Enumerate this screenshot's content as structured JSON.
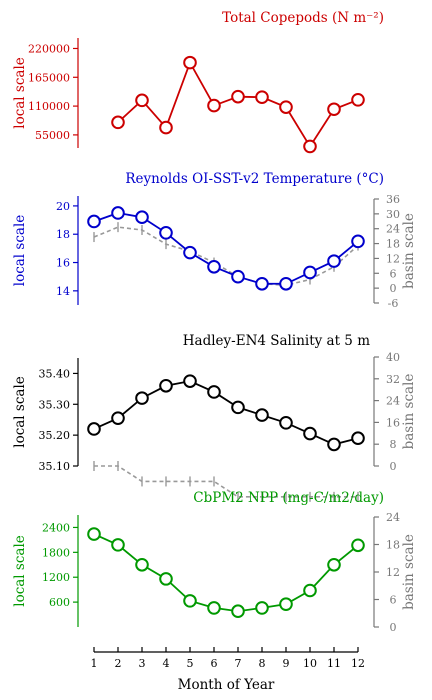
{
  "chart_data": [
    {
      "type": "line",
      "title": "Total Copepods (N m⁻²)",
      "color": "#cc0000",
      "ylabel_left": "local scale",
      "ylim_left": [
        30000,
        240000
      ],
      "yticks_left": [
        55000,
        110000,
        165000,
        220000
      ],
      "yticklabels_left": [
        "55000",
        "110000",
        "165000",
        "220000"
      ],
      "x": [
        2,
        3,
        4,
        5,
        6,
        7,
        8,
        9,
        10,
        11,
        12
      ],
      "series": [
        {
          "values": [
            79000,
            121000,
            69000,
            193000,
            111000,
            128000,
            127000,
            108000,
            33000,
            104000,
            122000
          ]
        }
      ]
    },
    {
      "type": "line",
      "title": "Reynolds OI-SST-v2 Temperature (°C)",
      "color": "#0000cc",
      "basis_color": "#999999",
      "ylabel_left": "local scale",
      "ylabel_right": "basin scale",
      "ylim_left": [
        13.0,
        20.7
      ],
      "yticks_left": [
        14,
        16,
        18,
        20
      ],
      "yticklabels_left": [
        "14",
        "16",
        "18",
        "20"
      ],
      "ylim_right": [
        -6,
        36
      ],
      "yticks_right": [
        -6,
        0,
        6,
        12,
        18,
        24,
        30,
        36
      ],
      "yticklabels_right": [
        "-6",
        "0",
        "6",
        "12",
        "18",
        "24",
        "30",
        "36"
      ],
      "x": [
        1,
        2,
        3,
        4,
        5,
        6,
        7,
        8,
        9,
        10,
        11,
        12
      ],
      "series": [
        {
          "axis": "left",
          "values": [
            18.9,
            19.5,
            19.2,
            18.1,
            16.7,
            15.7,
            15.0,
            14.5,
            14.5,
            15.3,
            16.1,
            17.5
          ]
        },
        {
          "axis": "right",
          "values": [
            17.8,
            18.5,
            18.3,
            17.3,
            16.8,
            16.0,
            15.0,
            14.5,
            14.4,
            14.8,
            15.7,
            17.2
          ],
          "style": "dashed"
        }
      ]
    },
    {
      "type": "line",
      "title": "Hadley-EN4 Salinity at 5 m",
      "color": "#000000",
      "basis_color": "#999999",
      "ylabel_left": "local scale",
      "ylabel_right": "basin scale",
      "ylim_left": [
        35.1,
        35.45
      ],
      "yticks_left": [
        35.1,
        35.2,
        35.3,
        35.4
      ],
      "yticklabels_left": [
        "35.10",
        "35.20",
        "35.30",
        "35.40"
      ],
      "ylim_right": [
        0,
        40
      ],
      "yticks_right": [
        0,
        8,
        16,
        24,
        32,
        40
      ],
      "yticklabels_right": [
        "0",
        "8",
        "16",
        "24",
        "32",
        "40"
      ],
      "x": [
        1,
        2,
        3,
        4,
        5,
        6,
        7,
        8,
        9,
        10,
        11,
        12
      ],
      "series": [
        {
          "axis": "left",
          "values": [
            35.22,
            35.255,
            35.32,
            35.36,
            35.375,
            35.34,
            35.29,
            35.265,
            35.24,
            35.205,
            35.17,
            35.19
          ]
        },
        {
          "axis": "right",
          "values": [
            35.1,
            35.1,
            35.05,
            35.05,
            35.05,
            35.05,
            35.0,
            35.0,
            35.0,
            35.0,
            35.0,
            35.0
          ],
          "style": "dashed"
        }
      ]
    },
    {
      "type": "line",
      "title": "CbPM2 NPP (mg-C/m2/day)",
      "color": "#009900",
      "ylabel_left": "local scale",
      "ylabel_right": "basin scale",
      "ylim_left": [
        0,
        2700
      ],
      "yticks_left": [
        600,
        1200,
        1800,
        2400
      ],
      "yticklabels_left": [
        "600",
        "1200",
        "1800",
        "2400"
      ],
      "ylim_right": [
        0,
        24
      ],
      "yticks_right": [
        0,
        6,
        12,
        18,
        24
      ],
      "yticklabels_right": [
        "0",
        "6",
        "12",
        "18",
        "24"
      ],
      "x": [
        1,
        2,
        3,
        4,
        5,
        6,
        7,
        8,
        9,
        10,
        11,
        12
      ],
      "series": [
        {
          "axis": "left",
          "values": [
            2240,
            1980,
            1500,
            1160,
            630,
            460,
            380,
            460,
            550,
            880,
            1500,
            1970
          ]
        }
      ]
    }
  ],
  "xaxis": {
    "ticks": [
      1,
      2,
      3,
      4,
      5,
      6,
      7,
      8,
      9,
      10,
      11,
      12
    ],
    "ticklabels": [
      "1",
      "2",
      "3",
      "4",
      "5",
      "6",
      "7",
      "8",
      "9",
      "10",
      "11",
      "12"
    ],
    "xlabel": "Month of Year",
    "xlim": [
      0.5,
      12.5
    ]
  }
}
